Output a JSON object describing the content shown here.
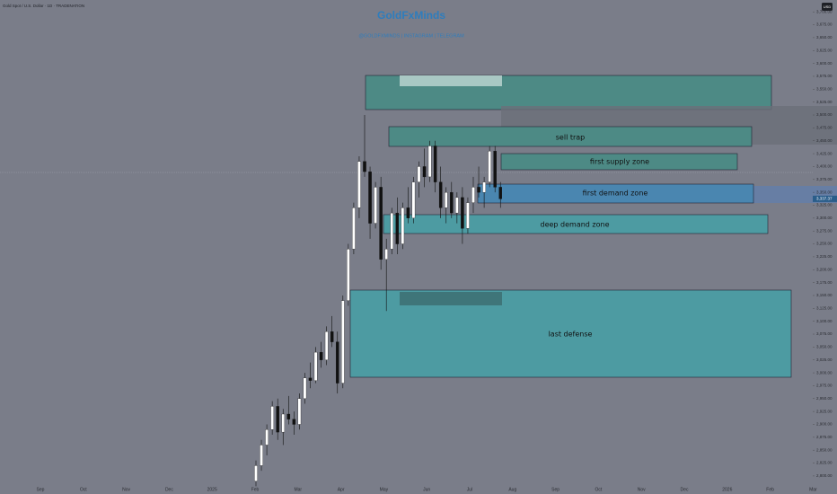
{
  "header": {
    "symbol": "Gold Spot / U.S. Dollar · 1D · TRADENATION",
    "currency": "USD"
  },
  "watermark": {
    "title": "GoldFxMinds",
    "subtitle": "@GOLDFXMINDS | INSTAGRAM | TELEGRAM"
  },
  "zones": [
    "sell trap",
    "first supply zone",
    "first demand zone",
    "deep demand zone",
    "last defense"
  ],
  "price_axis": {
    "ylim": [
      2765,
      3723
    ],
    "ticks": [
      {
        "value": 2800,
        "label": "2,800.00"
      },
      {
        "value": 2825,
        "label": "2,825.00"
      },
      {
        "value": 2850,
        "label": "2,850.00"
      },
      {
        "value": 2875,
        "label": "2,875.00"
      },
      {
        "value": 2900,
        "label": "2,900.00"
      },
      {
        "value": 2925,
        "label": "2,925.00"
      },
      {
        "value": 2950,
        "label": "2,950.00"
      },
      {
        "value": 2975,
        "label": "2,975.00"
      },
      {
        "value": 3000,
        "label": "3,000.00"
      },
      {
        "value": 3025,
        "label": "3,025.00"
      },
      {
        "value": 3050,
        "label": "3,050.00"
      },
      {
        "value": 3075,
        "label": "3,075.00"
      },
      {
        "value": 3100,
        "label": "3,100.00"
      },
      {
        "value": 3125,
        "label": "3,125.00"
      },
      {
        "value": 3150,
        "label": "3,150.00"
      },
      {
        "value": 3175,
        "label": "3,175.00"
      },
      {
        "value": 3200,
        "label": "3,200.00"
      },
      {
        "value": 3225,
        "label": "3,225.00"
      },
      {
        "value": 3250,
        "label": "3,250.00"
      },
      {
        "value": 3275,
        "label": "3,275.00"
      },
      {
        "value": 3300,
        "label": "3,300.00"
      },
      {
        "value": 3325,
        "label": "3,325.00"
      },
      {
        "value": 3350,
        "label": "3,350.00"
      },
      {
        "value": 3375,
        "label": "3,375.00"
      },
      {
        "value": 3400,
        "label": "3,400.00"
      },
      {
        "value": 3425,
        "label": "3,425.00"
      },
      {
        "value": 3450,
        "label": "3,450.00"
      },
      {
        "value": 3475,
        "label": "3,475.00"
      },
      {
        "value": 3500,
        "label": "3,500.00"
      },
      {
        "value": 3525,
        "label": "3,525.00"
      },
      {
        "value": 3550,
        "label": "3,550.00"
      },
      {
        "value": 3575,
        "label": "3,575.00"
      },
      {
        "value": 3600,
        "label": "3,600.00"
      },
      {
        "value": 3625,
        "label": "3,625.00"
      },
      {
        "value": 3650,
        "label": "3,650.00"
      },
      {
        "value": 3675,
        "label": "3,675.00"
      },
      {
        "value": 3700,
        "label": "3,700.00"
      }
    ]
  },
  "time_axis": [
    "Sep",
    "Oct",
    "Nov",
    "Dec",
    "2025",
    "Feb",
    "Mar",
    "Apr",
    "May",
    "Jun",
    "Jul",
    "Aug",
    "Sep",
    "Oct",
    "Nov",
    "Dec",
    "2026",
    "Feb",
    "Mar"
  ],
  "candles": [
    [
      2790,
      2830,
      2780,
      2820
    ],
    [
      2820,
      2870,
      2810,
      2860
    ],
    [
      2860,
      2900,
      2840,
      2890
    ],
    [
      2890,
      2945,
      2880,
      2935
    ],
    [
      2935,
      2950,
      2870,
      2885
    ],
    [
      2885,
      2930,
      2860,
      2920
    ],
    [
      2920,
      2955,
      2900,
      2910
    ],
    [
      2910,
      2925,
      2880,
      2900
    ],
    [
      2900,
      2960,
      2890,
      2950
    ],
    [
      2950,
      3000,
      2940,
      2990
    ],
    [
      2990,
      3020,
      2970,
      2985
    ],
    [
      2985,
      3050,
      2980,
      3040
    ],
    [
      3040,
      3060,
      3010,
      3025
    ],
    [
      3025,
      3090,
      3015,
      3080
    ],
    [
      3080,
      3110,
      3050,
      3060
    ],
    [
      3060,
      3080,
      2960,
      2980
    ],
    [
      2980,
      3150,
      2970,
      3140
    ],
    [
      3140,
      3250,
      3130,
      3240
    ],
    [
      3240,
      3330,
      3230,
      3320
    ],
    [
      3320,
      3420,
      3300,
      3410
    ],
    [
      3410,
      3500,
      3380,
      3390
    ],
    [
      3390,
      3400,
      3260,
      3290
    ],
    [
      3290,
      3370,
      3280,
      3360
    ],
    [
      3360,
      3380,
      3200,
      3220
    ],
    [
      3220,
      3260,
      3120,
      3240
    ],
    [
      3240,
      3320,
      3230,
      3310
    ],
    [
      3310,
      3340,
      3230,
      3250
    ],
    [
      3250,
      3330,
      3240,
      3320
    ],
    [
      3320,
      3360,
      3290,
      3300
    ],
    [
      3300,
      3380,
      3290,
      3370
    ],
    [
      3370,
      3410,
      3340,
      3400
    ],
    [
      3400,
      3435,
      3360,
      3380
    ],
    [
      3380,
      3450,
      3370,
      3440
    ],
    [
      3440,
      3450,
      3350,
      3370
    ],
    [
      3370,
      3400,
      3300,
      3320
    ],
    [
      3320,
      3360,
      3290,
      3350
    ],
    [
      3350,
      3370,
      3300,
      3310
    ],
    [
      3310,
      3350,
      3290,
      3340
    ],
    [
      3340,
      3360,
      3250,
      3280
    ],
    [
      3280,
      3340,
      3270,
      3330
    ],
    [
      3330,
      3380,
      3310,
      3360
    ],
    [
      3360,
      3400,
      3340,
      3350
    ],
    [
      3350,
      3380,
      3320,
      3370
    ],
    [
      3370,
      3440,
      3360,
      3430
    ],
    [
      3430,
      3440,
      3350,
      3360
    ],
    [
      3360,
      3370,
      3320,
      3337.37
    ]
  ],
  "last_price": {
    "value": 3337.37,
    "label": "3,337.37"
  }
}
